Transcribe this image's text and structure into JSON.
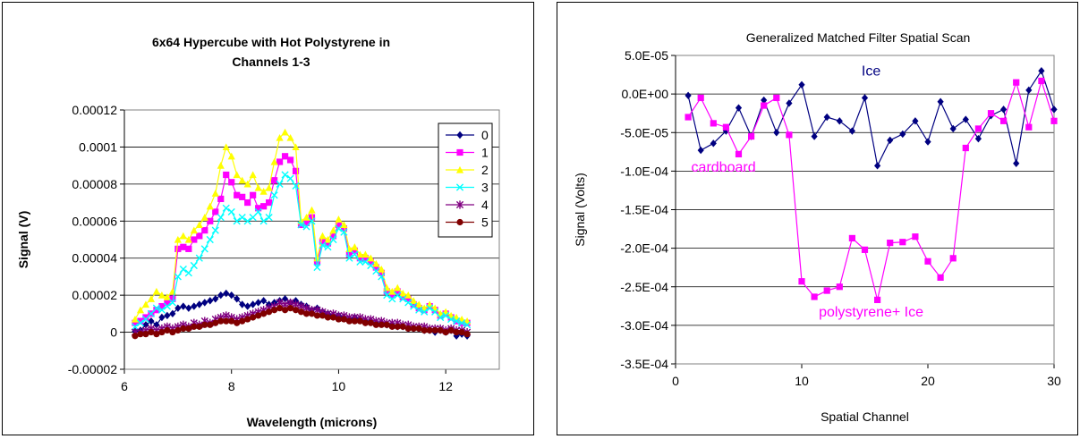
{
  "chart_data": [
    {
      "type": "line",
      "title": "6x64 Hypercube with Hot Polystyrene in Channels 1-3",
      "title_lines": [
        "6x64 Hypercube with Hot Polystyrene in",
        "Channels 1-3"
      ],
      "xlabel": "Wavelength (microns)",
      "ylabel": "Signal (V)",
      "xlim": [
        6,
        13
      ],
      "ylim": [
        -2e-05,
        0.00012
      ],
      "x_ticks": [
        6,
        8,
        10,
        12
      ],
      "x_tick_labels": [
        "6",
        "8",
        "10",
        "12"
      ],
      "y_ticks": [
        -2e-05,
        0,
        2e-05,
        4e-05,
        6e-05,
        8e-05,
        0.0001,
        0.00012
      ],
      "y_tick_labels": [
        "-0.00002",
        "0",
        "0.00002",
        "0.00004",
        "0.00006",
        "0.00008",
        "0.0001",
        "0.00012"
      ],
      "grid": "horizontal",
      "legend_position": "right",
      "x": [
        6.2,
        6.3,
        6.4,
        6.5,
        6.6,
        6.7,
        6.8,
        6.9,
        7.0,
        7.1,
        7.2,
        7.3,
        7.4,
        7.5,
        7.6,
        7.7,
        7.8,
        7.9,
        8.0,
        8.1,
        8.2,
        8.3,
        8.4,
        8.5,
        8.6,
        8.7,
        8.8,
        8.9,
        9.0,
        9.1,
        9.2,
        9.3,
        9.4,
        9.5,
        9.6,
        9.7,
        9.8,
        9.9,
        10.0,
        10.1,
        10.2,
        10.3,
        10.4,
        10.5,
        10.6,
        10.7,
        10.8,
        10.9,
        11.0,
        11.1,
        11.2,
        11.3,
        11.4,
        11.5,
        11.6,
        11.7,
        11.8,
        11.9,
        12.0,
        12.1,
        12.2,
        12.3,
        12.4
      ],
      "series": [
        {
          "name": "0",
          "color": "#000080",
          "marker": "diamond",
          "values": [
            5e-07,
            1e-06,
            4e-06,
            6e-06,
            4e-06,
            8e-06,
            9e-06,
            1e-05,
            1.3e-05,
            1.4e-05,
            1.3e-05,
            1.4e-05,
            1.5e-05,
            1.6e-05,
            1.7e-05,
            1.8e-05,
            2e-05,
            2.1e-05,
            2e-05,
            1.8e-05,
            1.5e-05,
            1.4e-05,
            1.5e-05,
            1.6e-05,
            1.7e-05,
            1.5e-05,
            1.6e-05,
            1.7e-05,
            1.8e-05,
            1.6e-05,
            1.7e-05,
            1.5e-05,
            1.4e-05,
            1.2e-05,
            1.3e-05,
            1.1e-05,
            1e-05,
            9e-06,
            9e-06,
            8e-06,
            7e-06,
            8e-06,
            7e-06,
            6e-06,
            6e-06,
            5e-06,
            5e-06,
            4e-06,
            4e-06,
            3e-06,
            3e-06,
            2e-06,
            2e-06,
            2e-06,
            1e-06,
            1e-06,
            0.0,
            1e-06,
            0.0,
            1e-06,
            -2e-06,
            -1e-06,
            -2e-06
          ]
        },
        {
          "name": "1",
          "color": "#FF00FF",
          "marker": "square",
          "values": [
            5e-06,
            6e-06,
            8e-06,
            1e-05,
            1.2e-05,
            1.4e-05,
            1.6e-05,
            1.8e-05,
            4.5e-05,
            4.6e-05,
            4.5e-05,
            5e-05,
            5.2e-05,
            5.5e-05,
            6e-05,
            6.5e-05,
            7.2e-05,
            8.5e-05,
            8.1e-05,
            7.4e-05,
            7.3e-05,
            7e-05,
            7.4e-05,
            6.7e-05,
            6.8e-05,
            7e-05,
            8.2e-05,
            9.2e-05,
            9.5e-05,
            9.3e-05,
            8.7e-05,
            5.8e-05,
            5.9e-05,
            6.2e-05,
            3.8e-05,
            4.9e-05,
            4.8e-05,
            5.2e-05,
            5.8e-05,
            5.6e-05,
            4.2e-05,
            4.4e-05,
            4e-05,
            4e-05,
            3.8e-05,
            3.5e-05,
            3.2e-05,
            2.2e-05,
            2e-05,
            2.2e-05,
            1.9e-05,
            1.8e-05,
            1.5e-05,
            1.3e-05,
            1.2e-05,
            1.4e-05,
            1.2e-05,
            9e-06,
            1e-05,
            8e-06,
            6e-06,
            5e-06,
            5e-06
          ]
        },
        {
          "name": "2",
          "color": "#FFFF00",
          "marker": "triangle",
          "values": [
            7e-06,
            1.2e-05,
            1.5e-05,
            1.8e-05,
            2.2e-05,
            2e-05,
            1.9e-05,
            2.2e-05,
            5e-05,
            5.2e-05,
            5e-05,
            5.5e-05,
            5.8e-05,
            6.2e-05,
            6.8e-05,
            7.5e-05,
            9e-05,
            0.0001,
            9.5e-05,
            8.5e-05,
            8.2e-05,
            8e-05,
            8.5e-05,
            7.8e-05,
            7.6e-05,
            7.8e-05,
            9.2e-05,
            0.000105,
            0.000108,
            0.000105,
            0.0001,
            6e-05,
            6.2e-05,
            6.6e-05,
            4e-05,
            5.2e-05,
            5e-05,
            5.5e-05,
            6.1e-05,
            5.8e-05,
            4.5e-05,
            4.6e-05,
            4.2e-05,
            4.2e-05,
            4e-05,
            3.7e-05,
            3.4e-05,
            2.4e-05,
            2.2e-05,
            2.4e-05,
            2.1e-05,
            2e-05,
            1.7e-05,
            1.5e-05,
            1.3e-05,
            1.5e-05,
            1.3e-05,
            1e-05,
            1.1e-05,
            9e-06,
            8e-06,
            7e-06,
            6e-06
          ]
        },
        {
          "name": "3",
          "color": "#00FFFF",
          "marker": "x",
          "values": [
            3e-06,
            5e-06,
            7e-06,
            1e-05,
            1.3e-05,
            1.2e-05,
            1.4e-05,
            1.6e-05,
            3e-05,
            3.4e-05,
            3.2e-05,
            3.6e-05,
            4e-05,
            4.5e-05,
            5e-05,
            5.5e-05,
            6.2e-05,
            6.7e-05,
            6.5e-05,
            6e-05,
            6.2e-05,
            6e-05,
            6.2e-05,
            6.5e-05,
            6e-05,
            6.2e-05,
            7.4e-05,
            8e-05,
            8.5e-05,
            8.3e-05,
            7.9e-05,
            5.8e-05,
            5.7e-05,
            6e-05,
            3.5e-05,
            4.7e-05,
            4.6e-05,
            5e-05,
            5.6e-05,
            5.4e-05,
            4e-05,
            4.2e-05,
            3.8e-05,
            3.8e-05,
            3.6e-05,
            3.3e-05,
            3e-05,
            2e-05,
            1.8e-05,
            2e-05,
            1.8e-05,
            1.6e-05,
            1.4e-05,
            1.2e-05,
            1.1e-05,
            1.3e-05,
            1.1e-05,
            8e-06,
            9e-06,
            7e-06,
            6e-06,
            5e-06,
            4e-06
          ]
        },
        {
          "name": "4",
          "color": "#800080",
          "marker": "star",
          "values": [
            0.0,
            0.0,
            1e-06,
            2e-06,
            1e-06,
            2e-06,
            3e-06,
            2e-06,
            3e-06,
            4e-06,
            3e-06,
            5e-06,
            4e-06,
            6e-06,
            5e-06,
            7e-06,
            8e-06,
            9e-06,
            8e-06,
            7e-06,
            8e-06,
            9e-06,
            1e-05,
            1.1e-05,
            1.2e-05,
            1.3e-05,
            1.4e-05,
            1.6e-05,
            1.5e-05,
            1.6e-05,
            1.5e-05,
            1.4e-05,
            1.3e-05,
            1.2e-05,
            1.2e-05,
            1.1e-05,
            1e-05,
            1e-05,
            9e-06,
            9e-06,
            8e-06,
            8e-06,
            8e-06,
            7e-06,
            7e-06,
            6e-06,
            6e-06,
            5e-06,
            5e-06,
            5e-06,
            4e-06,
            4e-06,
            3e-06,
            3e-06,
            3e-06,
            2e-06,
            2e-06,
            2e-06,
            1e-06,
            2e-06,
            1e-06,
            1e-06,
            0.0
          ]
        },
        {
          "name": "5",
          "color": "#800000",
          "marker": "circle",
          "values": [
            -2e-06,
            -1e-06,
            -1e-06,
            0.0,
            -1e-06,
            0.0,
            1e-06,
            0.0,
            1e-06,
            2e-06,
            2e-06,
            3e-06,
            3e-06,
            4e-06,
            4e-06,
            5e-06,
            6e-06,
            6e-06,
            6e-06,
            5e-06,
            6e-06,
            7e-06,
            8e-06,
            9e-06,
            1e-05,
            1.1e-05,
            1.2e-05,
            1.3e-05,
            1.2e-05,
            1.3e-05,
            1.2e-05,
            1.1e-05,
            1e-05,
            1e-05,
            9e-06,
            9e-06,
            8e-06,
            8e-06,
            7e-06,
            7e-06,
            6e-06,
            6e-06,
            6e-06,
            5e-06,
            5e-06,
            4e-06,
            4e-06,
            4e-06,
            3e-06,
            3e-06,
            3e-06,
            2e-06,
            2e-06,
            2e-06,
            1e-06,
            1e-06,
            1e-06,
            1e-06,
            0.0,
            1e-06,
            0.0,
            0.0,
            -1e-06
          ]
        }
      ]
    },
    {
      "type": "line",
      "title": "Generalized Matched Filter Spatial Scan",
      "xlabel": "Spatial Channel",
      "ylabel": "Signal (Volts)",
      "xlim": [
        0,
        30
      ],
      "ylim": [
        -0.00035,
        5e-05
      ],
      "x_ticks": [
        0,
        10,
        20,
        30
      ],
      "x_tick_labels": [
        "0",
        "10",
        "20",
        "30"
      ],
      "y_ticks": [
        5e-05,
        0,
        -5e-05,
        -0.0001,
        -0.00015,
        -0.0002,
        -0.00025,
        -0.0003,
        -0.00035
      ],
      "y_tick_labels": [
        "5.0E-05",
        "0.0E+00",
        "-5.0E-05",
        "-1.0E-04",
        "-1.5E-04",
        "-2.0E-04",
        "-2.5E-04",
        "-3.0E-04",
        "-3.5E-04"
      ],
      "grid": "horizontal",
      "annotations": [
        {
          "text": "Ice",
          "x": 15.5,
          "y": 3e-05,
          "color": "#000080"
        },
        {
          "text": "cardboard",
          "x": 3.8,
          "y": -9.5e-05,
          "color": "#FF00FF"
        },
        {
          "text": "polystyrene+ Ice",
          "x": 15.5,
          "y": -0.000283,
          "color": "#FF00FF"
        }
      ],
      "x": [
        1,
        2,
        3,
        4,
        5,
        6,
        7,
        8,
        9,
        10,
        11,
        12,
        13,
        14,
        15,
        16,
        17,
        18,
        19,
        20,
        21,
        22,
        23,
        24,
        25,
        26,
        27,
        28,
        29,
        30
      ],
      "series": [
        {
          "color": "#000080",
          "marker": "diamond",
          "values": [
            -2e-06,
            -7.3e-05,
            -6.4e-05,
            -4.8e-05,
            -1.8e-05,
            -5.5e-05,
            -8e-06,
            -5e-05,
            -1.2e-05,
            1.2e-05,
            -5.5e-05,
            -3e-05,
            -3.5e-05,
            -4.8e-05,
            -5e-06,
            -9.3e-05,
            -6e-05,
            -5.2e-05,
            -3.5e-05,
            -6.2e-05,
            -1e-05,
            -4.5e-05,
            -3.3e-05,
            -5.8e-05,
            -2.8e-05,
            -2e-05,
            -9e-05,
            5e-06,
            3e-05,
            -2e-05
          ]
        },
        {
          "color": "#FF00FF",
          "marker": "square",
          "values": [
            -3e-05,
            -5e-06,
            -3.8e-05,
            -4.3e-05,
            -7.8e-05,
            -5.5e-05,
            -1.5e-05,
            -5e-06,
            -5.3e-05,
            -0.000243,
            -0.000263,
            -0.000255,
            -0.00025,
            -0.000187,
            -0.000202,
            -0.000267,
            -0.000193,
            -0.000192,
            -0.000185,
            -0.000217,
            -0.000238,
            -0.000213,
            -7e-05,
            -4.5e-05,
            -2.5e-05,
            -3.5e-05,
            1.5e-05,
            -4.3e-05,
            1.7e-05,
            -3.5e-05
          ]
        }
      ]
    }
  ]
}
